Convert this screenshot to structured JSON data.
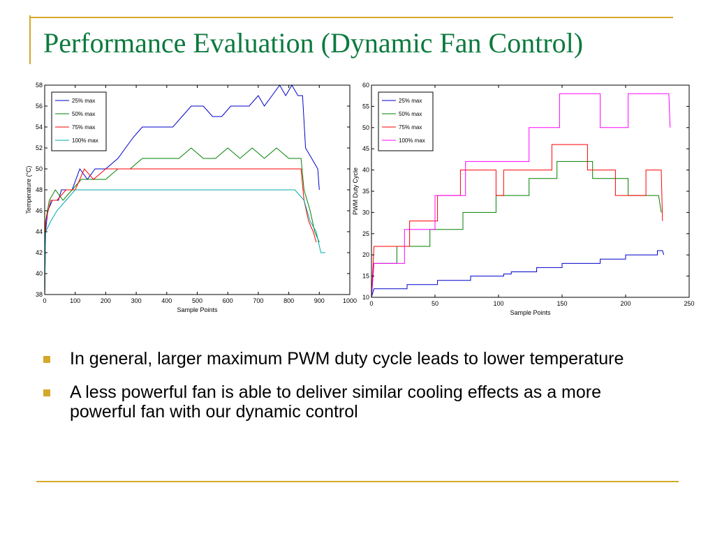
{
  "slide": {
    "title": "Performance Evaluation (Dynamic Fan Control)",
    "bullets": [
      "In general, larger maximum PWM duty cycle leads to lower temperature",
      "A less powerful fan is able to deliver similar cooling effects as a more powerful fan with our dynamic control"
    ],
    "accent_color": "#d4a82a",
    "title_color": "#0b7a3e"
  },
  "chart_data": [
    {
      "type": "line",
      "title": "",
      "xlabel": "Sample Points",
      "ylabel": "Temperature (°C)",
      "xlim": [
        0,
        1000
      ],
      "ylim": [
        38,
        58
      ],
      "xticks": [
        0,
        100,
        200,
        300,
        400,
        500,
        600,
        700,
        800,
        900,
        1000
      ],
      "yticks": [
        38,
        40,
        42,
        44,
        46,
        48,
        50,
        52,
        54,
        56,
        58
      ],
      "grid": false,
      "legend": "top-left",
      "series": [
        {
          "name": "25% max",
          "color": "#0000cc",
          "points": [
            [
              0,
              38
            ],
            [
              3,
              44
            ],
            [
              10,
              46
            ],
            [
              25,
              47
            ],
            [
              45,
              47
            ],
            [
              55,
              48
            ],
            [
              90,
              48
            ],
            [
              115,
              50
            ],
            [
              140,
              49
            ],
            [
              165,
              50
            ],
            [
              200,
              50
            ],
            [
              240,
              51
            ],
            [
              265,
              52
            ],
            [
              290,
              53
            ],
            [
              320,
              54
            ],
            [
              350,
              54
            ],
            [
              385,
              54
            ],
            [
              420,
              54
            ],
            [
              450,
              55
            ],
            [
              480,
              56
            ],
            [
              520,
              56
            ],
            [
              550,
              55
            ],
            [
              580,
              55
            ],
            [
              610,
              56
            ],
            [
              640,
              56
            ],
            [
              670,
              56
            ],
            [
              700,
              57
            ],
            [
              720,
              56
            ],
            [
              745,
              57
            ],
            [
              770,
              58
            ],
            [
              790,
              57
            ],
            [
              810,
              58
            ],
            [
              830,
              57
            ],
            [
              845,
              57
            ],
            [
              855,
              52
            ],
            [
              875,
              51
            ],
            [
              895,
              50
            ],
            [
              900,
              48
            ]
          ]
        },
        {
          "name": "50% max",
          "color": "#008000",
          "points": [
            [
              0,
              38
            ],
            [
              3,
              45
            ],
            [
              15,
              47
            ],
            [
              35,
              48
            ],
            [
              60,
              47
            ],
            [
              90,
              48
            ],
            [
              120,
              49
            ],
            [
              160,
              49
            ],
            [
              200,
              49
            ],
            [
              240,
              50
            ],
            [
              280,
              50
            ],
            [
              320,
              51
            ],
            [
              360,
              51
            ],
            [
              400,
              51
            ],
            [
              440,
              51
            ],
            [
              480,
              52
            ],
            [
              520,
              51
            ],
            [
              560,
              51
            ],
            [
              600,
              52
            ],
            [
              640,
              51
            ],
            [
              680,
              52
            ],
            [
              720,
              51
            ],
            [
              760,
              52
            ],
            [
              800,
              51
            ],
            [
              840,
              51
            ],
            [
              850,
              48
            ],
            [
              870,
              46
            ],
            [
              885,
              44
            ],
            [
              900,
              43
            ]
          ]
        },
        {
          "name": "75% max",
          "color": "#ff0000",
          "points": [
            [
              0,
              38
            ],
            [
              3,
              45
            ],
            [
              20,
              47
            ],
            [
              40,
              47
            ],
            [
              70,
              48
            ],
            [
              100,
              48
            ],
            [
              130,
              50
            ],
            [
              160,
              49
            ],
            [
              200,
              50
            ],
            [
              240,
              50
            ],
            [
              280,
              50
            ],
            [
              320,
              50
            ],
            [
              360,
              50
            ],
            [
              400,
              50
            ],
            [
              440,
              50
            ],
            [
              480,
              50
            ],
            [
              520,
              50
            ],
            [
              560,
              50
            ],
            [
              600,
              50
            ],
            [
              640,
              50
            ],
            [
              680,
              50
            ],
            [
              720,
              50
            ],
            [
              760,
              50
            ],
            [
              800,
              50
            ],
            [
              840,
              50
            ],
            [
              850,
              47
            ],
            [
              865,
              45
            ],
            [
              880,
              44
            ],
            [
              890,
              43
            ]
          ]
        },
        {
          "name": "100% max",
          "color": "#00aaaa",
          "points": [
            [
              0,
              38
            ],
            [
              3,
              44
            ],
            [
              20,
              45
            ],
            [
              40,
              46
            ],
            [
              70,
              47
            ],
            [
              100,
              48
            ],
            [
              140,
              48
            ],
            [
              180,
              48
            ],
            [
              220,
              48
            ],
            [
              260,
              48
            ],
            [
              300,
              48
            ],
            [
              340,
              48
            ],
            [
              380,
              48
            ],
            [
              420,
              48
            ],
            [
              460,
              48
            ],
            [
              500,
              48
            ],
            [
              540,
              48
            ],
            [
              580,
              48
            ],
            [
              620,
              48
            ],
            [
              660,
              48
            ],
            [
              700,
              48
            ],
            [
              740,
              48
            ],
            [
              780,
              48
            ],
            [
              820,
              48
            ],
            [
              850,
              47
            ],
            [
              870,
              45
            ],
            [
              890,
              44
            ],
            [
              905,
              42
            ],
            [
              920,
              42
            ]
          ]
        }
      ]
    },
    {
      "type": "line",
      "title": "",
      "xlabel": "Sample Points",
      "ylabel": "PWM Duty Cycle",
      "xlim": [
        0,
        250
      ],
      "ylim": [
        10,
        60
      ],
      "xticks": [
        0,
        50,
        100,
        150,
        200,
        250
      ],
      "yticks": [
        10,
        15,
        20,
        25,
        30,
        35,
        40,
        45,
        50,
        55,
        60
      ],
      "grid": false,
      "legend": "top-left",
      "series": [
        {
          "name": "25% max",
          "color": "#0000cc",
          "points": [
            [
              0,
              10
            ],
            [
              2,
              12
            ],
            [
              14,
              12
            ],
            [
              14,
              12
            ],
            [
              28,
              12
            ],
            [
              28,
              13
            ],
            [
              52,
              13
            ],
            [
              52,
              14
            ],
            [
              78,
              14
            ],
            [
              78,
              15
            ],
            [
              104,
              15
            ],
            [
              104,
              15.5
            ],
            [
              110,
              15.5
            ],
            [
              110,
              16
            ],
            [
              130,
              16
            ],
            [
              130,
              17
            ],
            [
              150,
              17
            ],
            [
              150,
              18
            ],
            [
              170,
              18
            ],
            [
              170,
              18
            ],
            [
              180,
              18
            ],
            [
              180,
              19
            ],
            [
              200,
              19
            ],
            [
              200,
              20
            ],
            [
              225,
              20
            ],
            [
              225,
              21
            ],
            [
              229,
              21
            ],
            [
              230,
              20
            ]
          ]
        },
        {
          "name": "50% max",
          "color": "#008000",
          "points": [
            [
              0,
              10
            ],
            [
              2,
              18
            ],
            [
              20,
              18
            ],
            [
              20,
              22
            ],
            [
              46,
              22
            ],
            [
              46,
              26
            ],
            [
              72,
              26
            ],
            [
              72,
              30
            ],
            [
              98,
              30
            ],
            [
              98,
              34
            ],
            [
              124,
              34
            ],
            [
              124,
              38
            ],
            [
              146,
              38
            ],
            [
              146,
              42
            ],
            [
              174,
              42
            ],
            [
              174,
              38
            ],
            [
              202,
              38
            ],
            [
              202,
              34
            ],
            [
              226,
              34
            ],
            [
              228,
              30
            ]
          ]
        },
        {
          "name": "75% max",
          "color": "#ff0000",
          "points": [
            [
              0,
              10
            ],
            [
              2,
              22
            ],
            [
              30,
              22
            ],
            [
              30,
              28
            ],
            [
              52,
              28
            ],
            [
              52,
              34
            ],
            [
              70,
              34
            ],
            [
              70,
              40
            ],
            [
              98,
              40
            ],
            [
              98,
              34
            ],
            [
              104,
              34
            ],
            [
              104,
              40
            ],
            [
              142,
              40
            ],
            [
              142,
              46
            ],
            [
              170,
              46
            ],
            [
              170,
              40
            ],
            [
              192,
              40
            ],
            [
              192,
              34
            ],
            [
              216,
              34
            ],
            [
              216,
              40
            ],
            [
              228,
              40
            ],
            [
              229,
              28
            ]
          ]
        },
        {
          "name": "100% max",
          "color": "#ff00ff",
          "points": [
            [
              0,
              10
            ],
            [
              2,
              18
            ],
            [
              26,
              18
            ],
            [
              26,
              26
            ],
            [
              50,
              26
            ],
            [
              50,
              34
            ],
            [
              74,
              34
            ],
            [
              74,
              42
            ],
            [
              124,
              42
            ],
            [
              124,
              50
            ],
            [
              148,
              50
            ],
            [
              148,
              58
            ],
            [
              180,
              58
            ],
            [
              180,
              50
            ],
            [
              202,
              50
            ],
            [
              202,
              58
            ],
            [
              234,
              58
            ],
            [
              235,
              50
            ]
          ]
        }
      ]
    }
  ]
}
